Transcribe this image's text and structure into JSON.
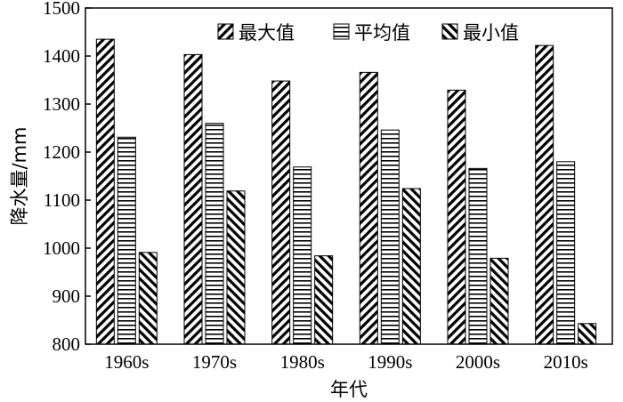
{
  "chart_data": {
    "type": "bar",
    "xlabel": "年代",
    "ylabel": "降水量/mm",
    "ylim": [
      800,
      1500
    ],
    "yticks": [
      800,
      900,
      1000,
      1100,
      1200,
      1300,
      1400,
      1500
    ],
    "grid": false,
    "legend_position": "top-right",
    "categories": [
      "1960s",
      "1970s",
      "1980s",
      "1990s",
      "2000s",
      "2010s"
    ],
    "series": [
      {
        "name": "最大值",
        "pattern": "diagonal-forward",
        "values": [
          1435,
          1403,
          1348,
          1366,
          1329,
          1422
        ]
      },
      {
        "name": "平均值",
        "pattern": "horizontal",
        "values": [
          1231,
          1260,
          1169,
          1246,
          1166,
          1180
        ]
      },
      {
        "name": "最小值",
        "pattern": "diagonal-backward",
        "values": [
          991,
          1119,
          984,
          1124,
          979,
          843
        ]
      }
    ]
  }
}
